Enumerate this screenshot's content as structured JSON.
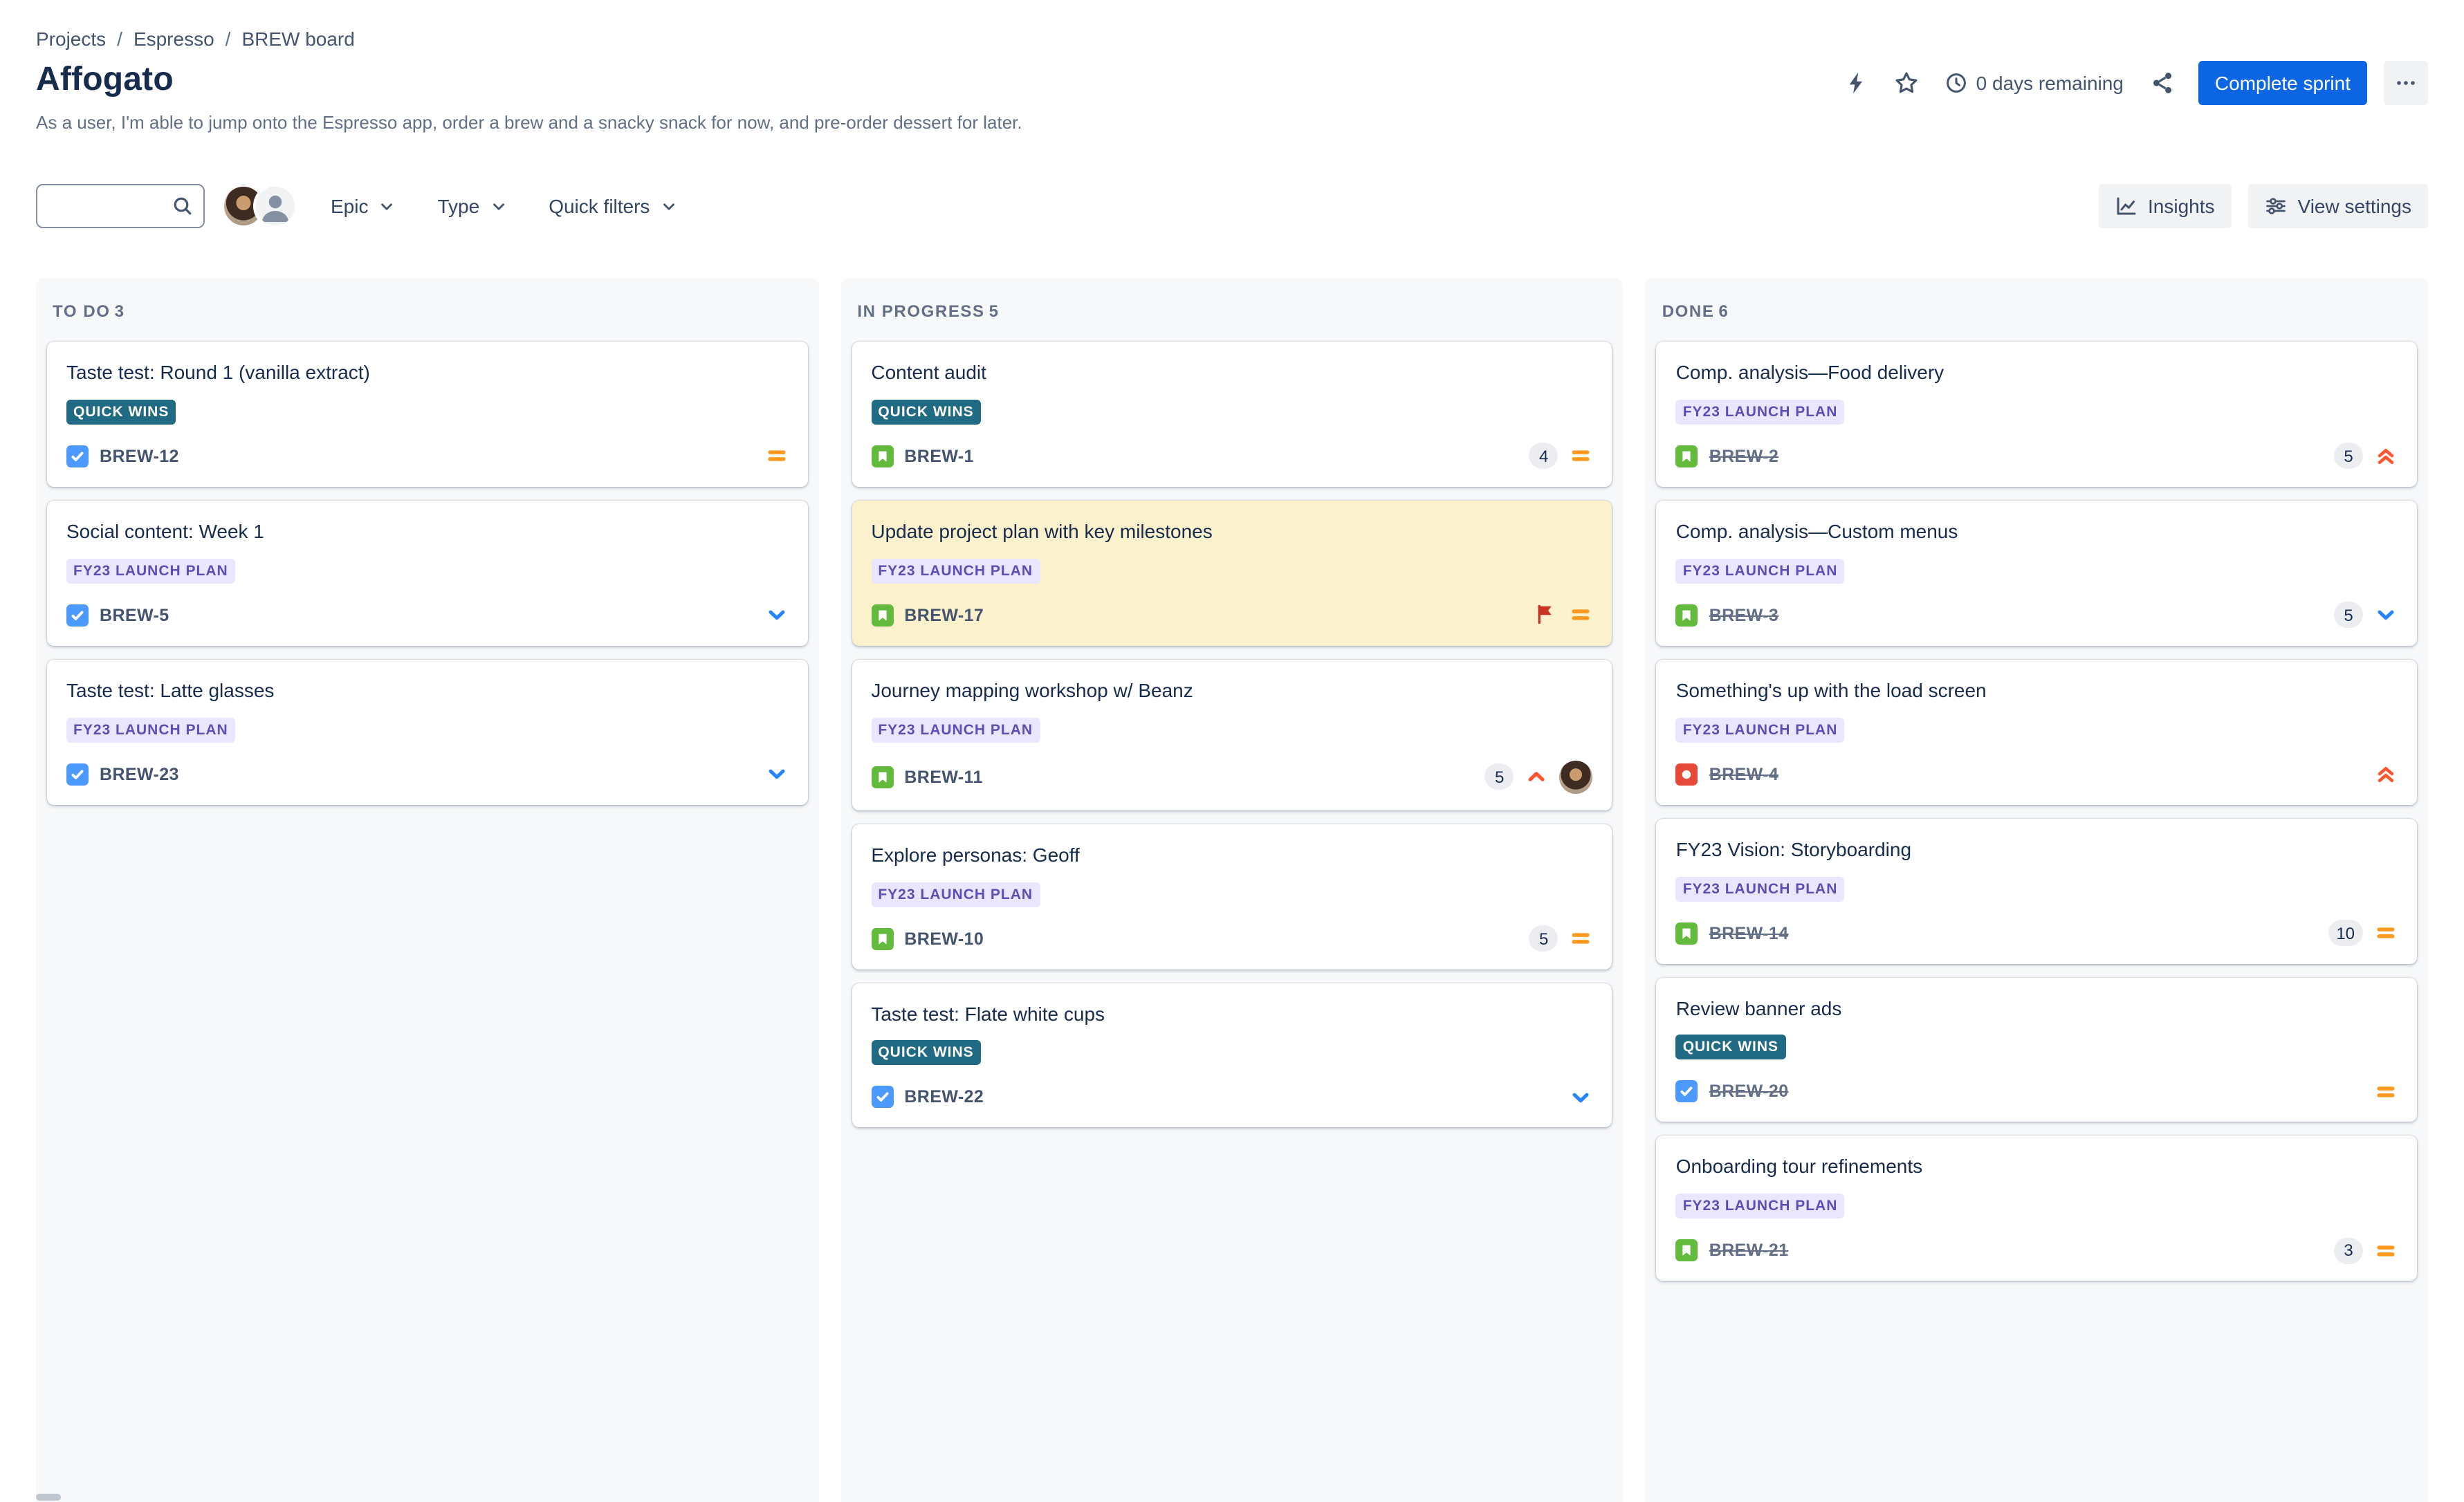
{
  "breadcrumb": {
    "separator": "/",
    "items": [
      "Projects",
      "Espresso",
      "BREW board"
    ]
  },
  "header": {
    "title": "Affogato",
    "sprint_goal": "As a user, I'm able to jump onto the Espresso app, order a brew and a snacky snack for now, and pre-order dessert for later.",
    "days_remaining": "0 days remaining",
    "complete_sprint_label": "Complete sprint"
  },
  "toolbar": {
    "search_placeholder": "",
    "epic_filter_label": "Epic",
    "type_filter_label": "Type",
    "quick_filters_label": "Quick filters",
    "insights_label": "Insights",
    "view_settings_label": "View settings"
  },
  "board": {
    "columns": [
      {
        "id": "todo",
        "name": "TO DO",
        "count": 3,
        "cards": [
          {
            "title": "Taste test: Round 1 (vanilla extract)",
            "epic": "QUICK WINS",
            "epic_variant": "teal",
            "type": "task",
            "key": "BREW-12",
            "priority": "medium"
          },
          {
            "title": "Social content: Week 1",
            "epic": "FY23 LAUNCH PLAN",
            "epic_variant": "purple",
            "type": "task",
            "key": "BREW-5",
            "priority": "low"
          },
          {
            "title": "Taste test: Latte glasses",
            "epic": "FY23 LAUNCH PLAN",
            "epic_variant": "purple",
            "type": "task",
            "key": "BREW-23",
            "priority": "low"
          }
        ]
      },
      {
        "id": "inprogress",
        "name": "IN PROGRESS",
        "count": 5,
        "cards": [
          {
            "title": "Content audit",
            "epic": "QUICK WINS",
            "epic_variant": "teal",
            "type": "story",
            "key": "BREW-1",
            "estimate": 4,
            "priority": "medium"
          },
          {
            "title": "Update project plan with key milestones",
            "epic": "FY23 LAUNCH PLAN",
            "epic_variant": "purple",
            "type": "story",
            "key": "BREW-17",
            "priority": "medium",
            "flagged": true
          },
          {
            "title": "Journey mapping workshop w/ Beanz",
            "epic": "FY23 LAUNCH PLAN",
            "epic_variant": "purple",
            "type": "story",
            "key": "BREW-11",
            "estimate": 5,
            "priority": "high",
            "avatar": true
          },
          {
            "title": "Explore personas: Geoff",
            "epic": "FY23 LAUNCH PLAN",
            "epic_variant": "purple",
            "type": "story",
            "key": "BREW-10",
            "estimate": 5,
            "priority": "medium"
          },
          {
            "title": "Taste test: Flate white cups",
            "epic": "QUICK WINS",
            "epic_variant": "teal",
            "type": "task",
            "key": "BREW-22",
            "priority": "low"
          }
        ]
      },
      {
        "id": "done",
        "name": "DONE",
        "count": 6,
        "cards": [
          {
            "title": "Comp. analysis—Food delivery",
            "epic": "FY23 LAUNCH PLAN",
            "epic_variant": "purple",
            "type": "story",
            "key": "BREW-2",
            "estimate": 5,
            "priority": "highest",
            "done": true
          },
          {
            "title": "Comp. analysis—Custom menus",
            "epic": "FY23 LAUNCH PLAN",
            "epic_variant": "purple",
            "type": "story",
            "key": "BREW-3",
            "estimate": 5,
            "priority": "low",
            "done": true
          },
          {
            "title": "Something's up with the load screen",
            "epic": "FY23 LAUNCH PLAN",
            "epic_variant": "purple",
            "type": "bug",
            "key": "BREW-4",
            "priority": "highest",
            "done": true
          },
          {
            "title": "FY23 Vision: Storyboarding",
            "epic": "FY23 LAUNCH PLAN",
            "epic_variant": "purple",
            "type": "story",
            "key": "BREW-14",
            "estimate": 10,
            "priority": "medium",
            "done": true
          },
          {
            "title": "Review banner ads",
            "epic": "QUICK WINS",
            "epic_variant": "teal",
            "type": "task",
            "key": "BREW-20",
            "priority": "medium",
            "done": true
          },
          {
            "title": "Onboarding tour refinements",
            "epic": "FY23 LAUNCH PLAN",
            "epic_variant": "purple",
            "type": "story",
            "key": "BREW-21",
            "estimate": 3,
            "priority": "medium",
            "done": true
          }
        ]
      }
    ]
  },
  "colors": {
    "primary_button": "#0C66E4",
    "flagged_card_bg": "#FBF1CC",
    "column_bg": "#F7F8F9",
    "epic": {
      "teal_bg": "#206A83",
      "teal_text": "#FFFFFF",
      "purple_bg": "#EAE6FF",
      "purple_text": "#5E4DB2"
    },
    "type": {
      "task": "#4C9AFF",
      "story": "#63BA3C",
      "bug": "#E5493A"
    },
    "priority": {
      "medium": "#FF991F",
      "low": "#2684FF",
      "high": "#FF5630",
      "highest": "#FF5630"
    },
    "flag": "#CA3521"
  },
  "icons": {
    "lightning": "bolt",
    "star": "star-outline",
    "clock": "clock-face",
    "share": "share-nodes",
    "more": "ellipsis",
    "search": "magnifier",
    "chevron-down": "chevron",
    "insights": "line-chart",
    "view-settings": "sliders",
    "task": "blue-check-square",
    "story": "green-bookmark-square",
    "bug": "red-dot-square",
    "flag": "red-flag",
    "priority-medium": "orange-equals",
    "priority-low": "blue-chevron-down",
    "priority-high": "red-chevron-up",
    "priority-highest": "red-double-chevron-up"
  }
}
